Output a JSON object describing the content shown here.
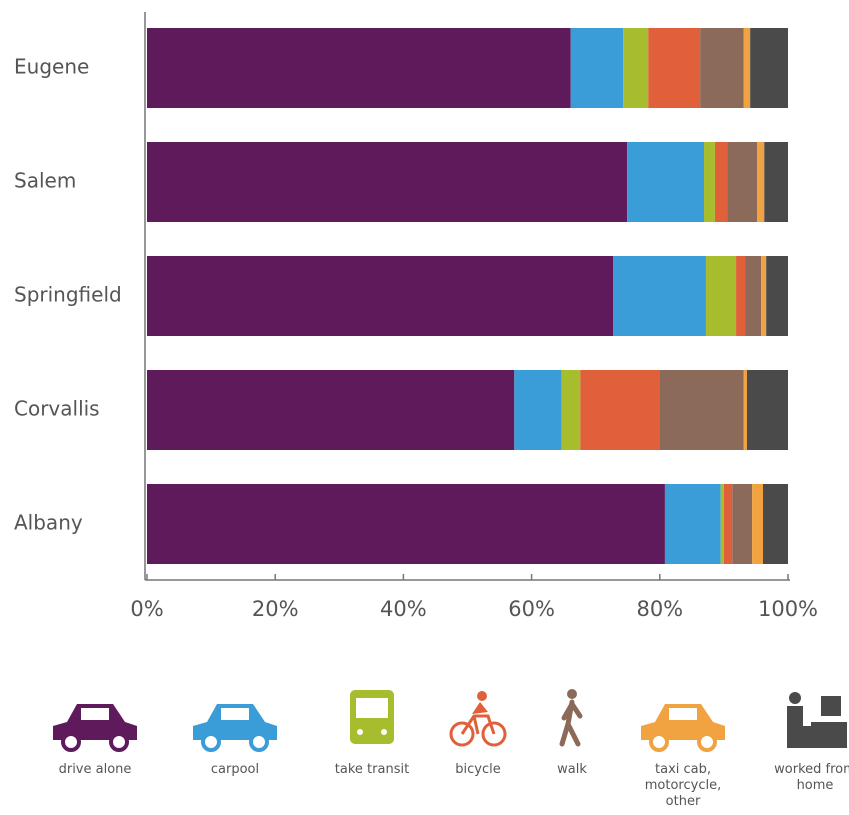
{
  "chart_data": {
    "type": "stacked-bar-horizontal",
    "categories": [
      "Eugene",
      "Salem",
      "Springfield",
      "Corvallis",
      "Albany"
    ],
    "series": [
      {
        "name": "drive alone",
        "color": "#5e1a5a",
        "values": [
          66.1,
          74.9,
          72.7,
          57.3,
          80.8
        ]
      },
      {
        "name": "carpool",
        "color": "#3a9dd8",
        "values": [
          8.2,
          12.0,
          14.5,
          7.4,
          8.7
        ]
      },
      {
        "name": "take transit",
        "color": "#a7bd2e",
        "values": [
          3.9,
          1.7,
          4.7,
          2.9,
          0.5
        ]
      },
      {
        "name": "bicycle",
        "color": "#e0603a",
        "values": [
          8.1,
          1.9,
          1.4,
          12.3,
          1.3
        ]
      },
      {
        "name": "walk",
        "color": "#8c6a5a",
        "values": [
          6.8,
          4.7,
          2.5,
          13.2,
          3.1
        ]
      },
      {
        "name": "taxi cab, motorcycle, other",
        "color": "#f0a340",
        "values": [
          1.0,
          1.1,
          0.8,
          0.5,
          1.7
        ]
      },
      {
        "name": "worked from home",
        "color": "#4a4a4a",
        "values": [
          5.9,
          3.7,
          3.4,
          6.4,
          3.9
        ]
      }
    ],
    "xlim": [
      0,
      100
    ],
    "xticks": [
      {
        "value": 0,
        "label": "0%"
      },
      {
        "value": 20,
        "label": "20%"
      },
      {
        "value": 40,
        "label": "40%"
      },
      {
        "value": 60,
        "label": "60%"
      },
      {
        "value": 80,
        "label": "80%"
      },
      {
        "value": 100,
        "label": "100%"
      }
    ]
  }
}
